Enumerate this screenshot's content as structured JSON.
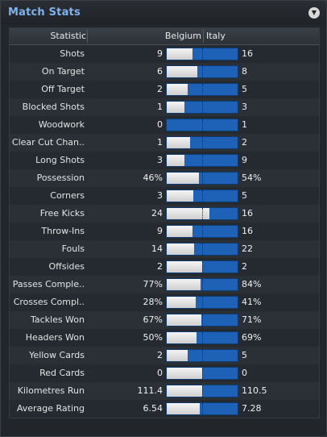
{
  "panel": {
    "title": "Match Stats",
    "menu_icon": "chevron-down-icon"
  },
  "header": {
    "statistic": "Statistic",
    "home": "Belgium",
    "away": "Italy"
  },
  "rows": [
    {
      "label": "Shots",
      "home": "9",
      "away": "16",
      "home_share": 0.36
    },
    {
      "label": "On Target",
      "home": "6",
      "away": "8",
      "home_share": 0.43
    },
    {
      "label": "Off Target",
      "home": "2",
      "away": "5",
      "home_share": 0.29
    },
    {
      "label": "Blocked Shots",
      "home": "1",
      "away": "3",
      "home_share": 0.25
    },
    {
      "label": "Woodwork",
      "home": "0",
      "away": "1",
      "home_share": 0.0
    },
    {
      "label": "Clear Cut Chan..",
      "home": "1",
      "away": "2",
      "home_share": 0.33
    },
    {
      "label": "Long Shots",
      "home": "3",
      "away": "9",
      "home_share": 0.25
    },
    {
      "label": "Possession",
      "home": "46%",
      "away": "54%",
      "home_share": 0.46
    },
    {
      "label": "Corners",
      "home": "3",
      "away": "5",
      "home_share": 0.38
    },
    {
      "label": "Free Kicks",
      "home": "24",
      "away": "16",
      "home_share": 0.6
    },
    {
      "label": "Throw-Ins",
      "home": "9",
      "away": "16",
      "home_share": 0.36
    },
    {
      "label": "Fouls",
      "home": "14",
      "away": "22",
      "home_share": 0.39
    },
    {
      "label": "Offsides",
      "home": "2",
      "away": "2",
      "home_share": 0.5
    },
    {
      "label": "Passes Comple..",
      "home": "77%",
      "away": "84%",
      "home_share": 0.48
    },
    {
      "label": "Crosses Compl..",
      "home": "28%",
      "away": "41%",
      "home_share": 0.41
    },
    {
      "label": "Tackles Won",
      "home": "67%",
      "away": "71%",
      "home_share": 0.49
    },
    {
      "label": "Headers Won",
      "home": "50%",
      "away": "69%",
      "home_share": 0.42
    },
    {
      "label": "Yellow Cards",
      "home": "2",
      "away": "5",
      "home_share": 0.29
    },
    {
      "label": "Red Cards",
      "home": "0",
      "away": "0",
      "home_share": 0.5
    },
    {
      "label": "Kilometres Run",
      "home": "111.4",
      "away": "110.5",
      "home_share": 0.5
    },
    {
      "label": "Average Rating",
      "home": "6.54",
      "away": "7.28",
      "home_share": 0.47
    }
  ],
  "colors": {
    "title": "#7fb3ee",
    "away_bar": "#1e62b8",
    "home_bar": "#e8e8e8"
  }
}
